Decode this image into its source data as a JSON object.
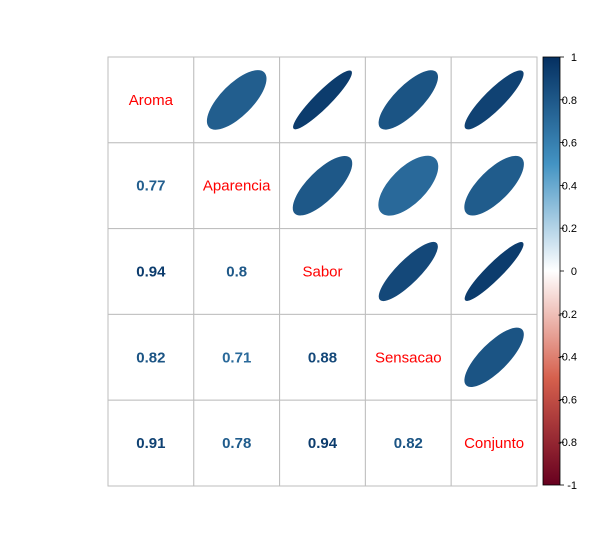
{
  "chart_data": {
    "type": "heatmap",
    "subtype": "correlation-matrix (lower: numbers, upper: ellipses)",
    "variables": [
      "Aroma",
      "Aparencia",
      "Sabor",
      "Sensacao",
      "Conjunto"
    ],
    "matrix": [
      [
        1.0,
        0.77,
        0.94,
        0.82,
        0.91
      ],
      [
        0.77,
        1.0,
        0.8,
        0.71,
        0.78
      ],
      [
        0.94,
        0.8,
        1.0,
        0.88,
        0.94
      ],
      [
        0.82,
        0.71,
        0.88,
        1.0,
        0.82
      ],
      [
        0.91,
        0.78,
        0.94,
        0.82,
        1.0
      ]
    ],
    "lower_labels": [
      [
        "",
        "",
        "",
        "",
        ""
      ],
      [
        "0.77",
        "",
        "",
        "",
        ""
      ],
      [
        "0.94",
        "0.8",
        "",
        "",
        ""
      ],
      [
        "0.82",
        "0.71",
        "0.88",
        "",
        ""
      ],
      [
        "0.91",
        "0.78",
        "0.94",
        "0.82",
        ""
      ]
    ],
    "colorbar": {
      "range": [
        -1,
        1
      ],
      "ticks": [
        "1",
        "0.8",
        "0.6",
        "0.4",
        "0.2",
        "0",
        "-0.2",
        "-0.4",
        "-0.6",
        "-0.8",
        "-1"
      ],
      "colors": {
        "neg_strong": "#67001f",
        "neg_mid": "#d6604d",
        "neutral": "#ffffff",
        "pos_mid": "#4393c3",
        "pos_strong": "#053061"
      }
    },
    "diag_label_color": "#ff0000",
    "grid": true
  }
}
